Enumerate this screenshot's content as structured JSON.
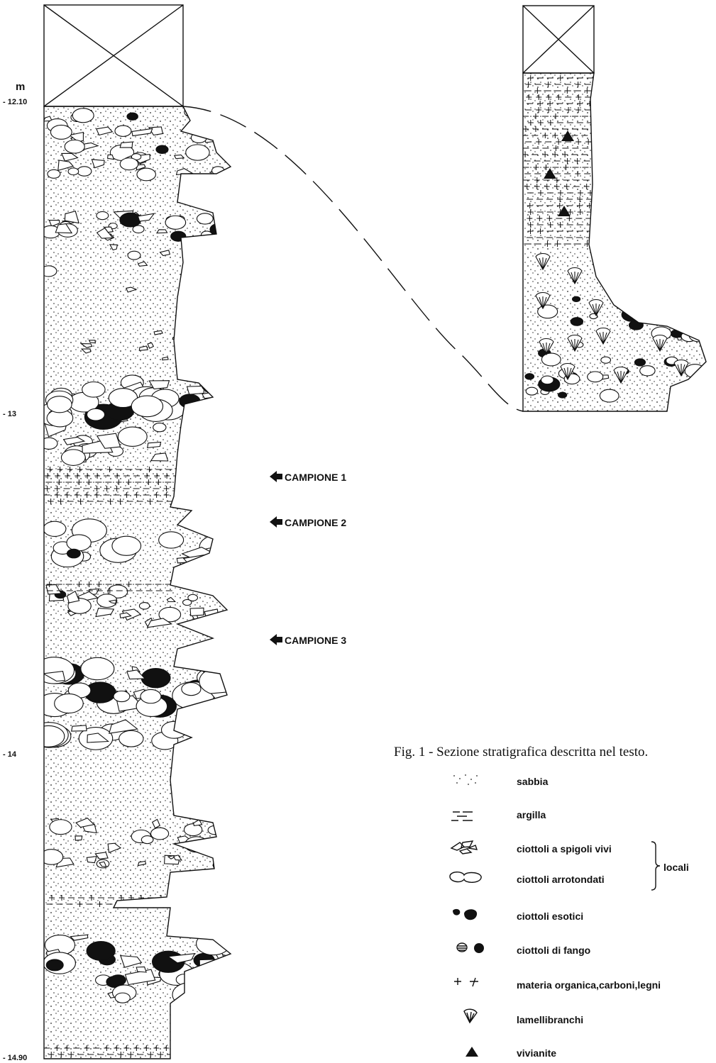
{
  "depth_unit": "m",
  "depth_labels": [
    "- 12.10",
    "- 13",
    "- 14",
    "- 14.90"
  ],
  "samples": [
    "CAMPIONE 1",
    "CAMPIONE 2",
    "CAMPIONE 3"
  ],
  "caption": "Fig. 1 - Sezione stratigrafica descritta nel testo.",
  "legend": [
    "sabbia",
    "argilla",
    "ciottoli a spigoli vivi",
    "ciottoli arrotondati",
    "ciottoli esotici",
    "ciottoli di fango",
    "materia organica,carboni,legni",
    "lamellibranchi",
    "vivianite"
  ],
  "legend_group": "locali"
}
